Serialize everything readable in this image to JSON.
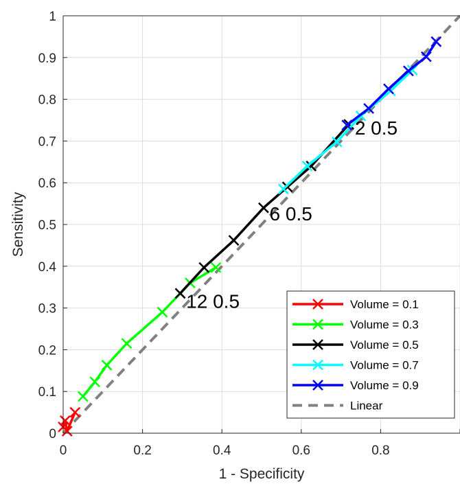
{
  "chart_data": {
    "type": "line",
    "title": "",
    "xlabel": "1 - Specificity",
    "ylabel": "Sensitivity",
    "xlim": [
      0,
      1
    ],
    "ylim": [
      0,
      1
    ],
    "grid": true,
    "legend_position": "bottom-right",
    "x_ticks": [
      {
        "value": 0,
        "label": "0"
      },
      {
        "value": 0.2,
        "label": "0.2"
      },
      {
        "value": 0.4,
        "label": "0.4"
      },
      {
        "value": 0.6,
        "label": "0.6"
      },
      {
        "value": 0.8,
        "label": "0.8"
      },
      {
        "value": 1,
        "label": "1"
      }
    ],
    "y_ticks": [
      {
        "value": 0,
        "label": "0"
      },
      {
        "value": 0.1,
        "label": "0.1"
      },
      {
        "value": 0.2,
        "label": "0.2"
      },
      {
        "value": 0.3,
        "label": "0.3"
      },
      {
        "value": 0.4,
        "label": "0.4"
      },
      {
        "value": 0.5,
        "label": "0.5"
      },
      {
        "value": 0.6,
        "label": "0.6"
      },
      {
        "value": 0.7,
        "label": "0.7"
      },
      {
        "value": 0.8,
        "label": "0.8"
      },
      {
        "value": 0.9,
        "label": "0.9"
      },
      {
        "value": 1,
        "label": "1"
      }
    ],
    "series": [
      {
        "name": "Volume = 0.1",
        "color": "#ff0000",
        "marker": "x",
        "style": "solid",
        "points": [
          [
            0.0,
            0.015
          ],
          [
            0.005,
            0.03
          ],
          [
            0.01,
            0.005
          ],
          [
            0.03,
            0.05
          ]
        ]
      },
      {
        "name": "Volume = 0.3",
        "color": "#00ff00",
        "marker": "x",
        "style": "solid",
        "points": [
          [
            0.05,
            0.088
          ],
          [
            0.08,
            0.123
          ],
          [
            0.11,
            0.163
          ],
          [
            0.16,
            0.215
          ],
          [
            0.25,
            0.29
          ],
          [
            0.32,
            0.36
          ],
          [
            0.385,
            0.397
          ]
        ]
      },
      {
        "name": "Volume = 0.5",
        "color": "#000000",
        "marker": "x",
        "style": "solid",
        "points": [
          [
            0.295,
            0.335
          ],
          [
            0.355,
            0.397
          ],
          [
            0.43,
            0.462
          ],
          [
            0.505,
            0.54
          ],
          [
            0.565,
            0.59
          ],
          [
            0.625,
            0.64
          ],
          [
            0.72,
            0.74
          ]
        ]
      },
      {
        "name": "Volume = 0.7",
        "color": "#00ffff",
        "marker": "x",
        "style": "solid",
        "points": [
          [
            0.555,
            0.585
          ],
          [
            0.615,
            0.64
          ],
          [
            0.69,
            0.698
          ],
          [
            0.75,
            0.76
          ],
          [
            0.825,
            0.82
          ],
          [
            0.88,
            0.87
          ]
        ]
      },
      {
        "name": "Volume = 0.9",
        "color": "#0000ff",
        "marker": "x",
        "style": "solid",
        "points": [
          [
            0.715,
            0.738
          ],
          [
            0.77,
            0.778
          ],
          [
            0.82,
            0.825
          ],
          [
            0.87,
            0.868
          ],
          [
            0.915,
            0.902
          ],
          [
            0.94,
            0.938
          ]
        ]
      },
      {
        "name": "Linear",
        "color": "#808080",
        "marker": "none",
        "style": "dashed",
        "points": [
          [
            0,
            0
          ],
          [
            1,
            1
          ]
        ]
      }
    ],
    "annotations": [
      {
        "text": "12 0.5",
        "x": 0.31,
        "y": 0.32
      },
      {
        "text": "6 0.5",
        "x": 0.52,
        "y": 0.53
      },
      {
        "text": "2 0.5",
        "x": 0.735,
        "y": 0.735
      }
    ]
  }
}
